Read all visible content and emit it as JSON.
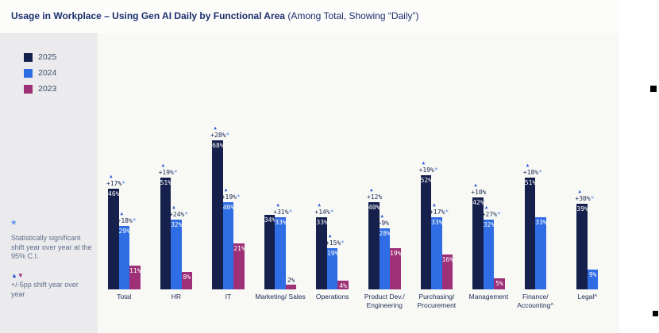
{
  "header": {
    "title_bold": "Usage in Workplace – Using Gen AI Daily by Functional Area",
    "title_rest": "(Among Total, Showing “Daily”)"
  },
  "sidebar": {
    "legend": [
      {
        "label": "2025",
        "color": "#16204d"
      },
      {
        "label": "2024",
        "color": "#2f6de4"
      },
      {
        "label": "2023",
        "color": "#9e3078"
      }
    ],
    "note_significance_symbol": "*",
    "note_significance": "Statistically significant shift year over year at the 95% C.I.",
    "note_shift_up": "▲",
    "note_shift_down": "▼",
    "note_shift": "+/-5pp shift year over year"
  },
  "chart_data": {
    "type": "bar",
    "title": "Usage in Workplace – Using Gen AI Daily by Functional Area (Among Total, Showing “Daily”)",
    "unit": "percent",
    "ylim": [
      0,
      75
    ],
    "grid": false,
    "axes_visible": false,
    "legend_position": "top-left",
    "series_names": [
      "2025",
      "2024",
      "2023"
    ],
    "annotation_meaning": "percentage-point change vs prior year; * = statistically significant at 95% C.I.; ▲ = +5pp or more shift",
    "groups": [
      {
        "category": "Total",
        "label_lines": [
          "Total"
        ],
        "bars": [
          {
            "year": "2025",
            "value": 46,
            "change": "+17%",
            "significant": true
          },
          {
            "year": "2024",
            "value": 29,
            "change": "+18%",
            "significant": true
          },
          {
            "year": "2023",
            "value": 11
          }
        ]
      },
      {
        "category": "HR",
        "label_lines": [
          "HR"
        ],
        "bars": [
          {
            "year": "2025",
            "value": 51,
            "change": "+19%",
            "significant": true
          },
          {
            "year": "2024",
            "value": 32,
            "change": "+24%",
            "significant": true
          },
          {
            "year": "2023",
            "value": 8
          }
        ]
      },
      {
        "category": "IT",
        "label_lines": [
          "IT"
        ],
        "bars": [
          {
            "year": "2025",
            "value": 68,
            "change": "+28%",
            "significant": true
          },
          {
            "year": "2024",
            "value": 40,
            "change": "+19%",
            "significant": true
          },
          {
            "year": "2023",
            "value": 21
          }
        ]
      },
      {
        "category": "Marketing/ Sales",
        "label_lines": [
          "Marketing/ Sales"
        ],
        "bars": [
          {
            "year": "2025",
            "value": 34
          },
          {
            "year": "2024",
            "value": 33,
            "change": "+31%",
            "significant": true
          },
          {
            "year": "2023",
            "value": 2
          }
        ]
      },
      {
        "category": "Operations",
        "label_lines": [
          "Operations"
        ],
        "bars": [
          {
            "year": "2025",
            "value": 33,
            "change": "+14%",
            "significant": true
          },
          {
            "year": "2024",
            "value": 19,
            "change": "+15%",
            "significant": true
          },
          {
            "year": "2023",
            "value": 4
          }
        ]
      },
      {
        "category": "Product Dev./ Engineering",
        "label_lines": [
          "Product Dev./",
          "Engineering"
        ],
        "bars": [
          {
            "year": "2025",
            "value": 40,
            "change": "+12%",
            "significant": false
          },
          {
            "year": "2024",
            "value": 28,
            "change": "+9%",
            "significant": false
          },
          {
            "year": "2023",
            "value": 19
          }
        ]
      },
      {
        "category": "Purchasing/ Procurement",
        "label_lines": [
          "Purchasing/",
          "Procurement"
        ],
        "bars": [
          {
            "year": "2025",
            "value": 52,
            "change": "+19%",
            "significant": true
          },
          {
            "year": "2024",
            "value": 33,
            "change": "+17%",
            "significant": true
          },
          {
            "year": "2023",
            "value": 16
          }
        ]
      },
      {
        "category": "Management",
        "label_lines": [
          "Management"
        ],
        "bars": [
          {
            "year": "2025",
            "value": 42,
            "change": "+10%",
            "significant": false
          },
          {
            "year": "2024",
            "value": 32,
            "change": "+27%",
            "significant": true
          },
          {
            "year": "2023",
            "value": 5
          }
        ]
      },
      {
        "category": "Finance/ Accounting^",
        "label_lines": [
          "Finance/",
          "Accounting^"
        ],
        "bars": [
          {
            "year": "2025",
            "value": 51,
            "change": "+18%",
            "significant": true
          },
          {
            "year": "2024",
            "value": 33
          }
        ]
      },
      {
        "category": "Legal^",
        "label_lines": [
          "Legal^"
        ],
        "bars": [
          {
            "year": "2025",
            "value": 39,
            "change": "+30%",
            "significant": true
          },
          {
            "year": "2024",
            "value": 9
          }
        ]
      }
    ]
  }
}
